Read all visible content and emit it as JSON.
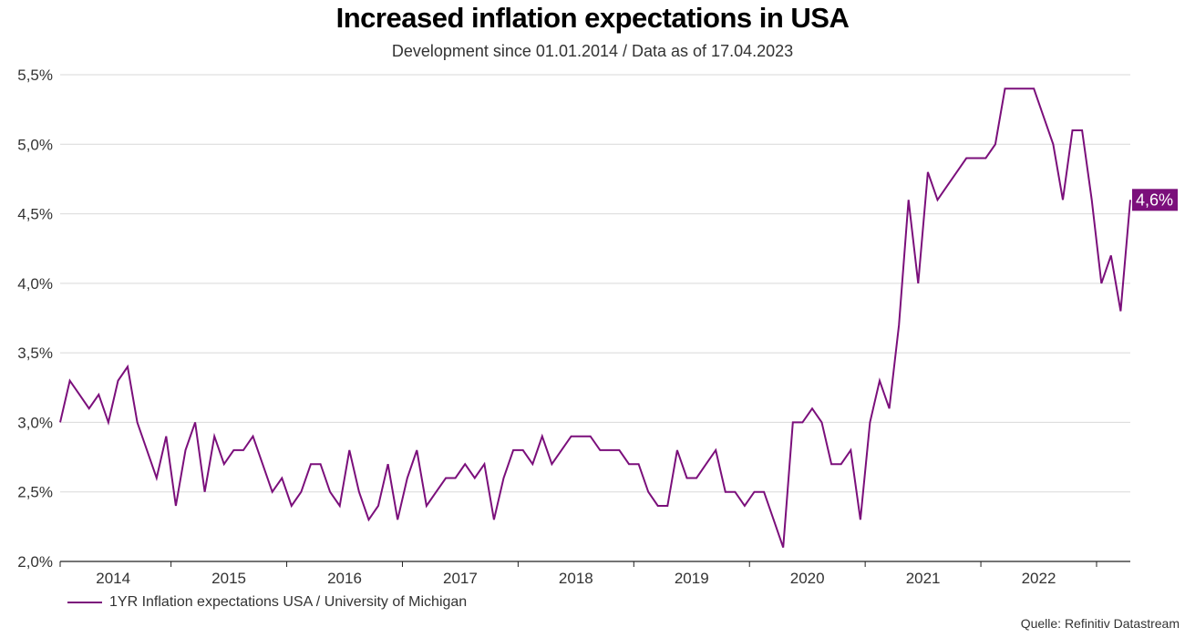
{
  "chart_data": {
    "type": "line",
    "title": "Increased inflation expectations in USA",
    "subtitle": "Development since 01.01.2014 / Data as of 17.04.2023",
    "xlabel": "",
    "ylabel": "",
    "ylim": [
      2.0,
      5.5
    ],
    "yticks": [
      2.0,
      2.5,
      3.0,
      3.5,
      4.0,
      4.5,
      5.0,
      5.5
    ],
    "ytick_labels": [
      "2,0%",
      "2,5%",
      "3,0%",
      "3,5%",
      "4,0%",
      "4,5%",
      "5,0%",
      "5,5%"
    ],
    "xtick_labels": [
      "2014",
      "2015",
      "2016",
      "2017",
      "2018",
      "2019",
      "2020",
      "2021",
      "2022"
    ],
    "x_start": "2014-01",
    "x_end": "2023-04",
    "grid": true,
    "legend_position": "bottom-left",
    "series": [
      {
        "name": "1YR Inflation expectations USA / University of Michigan",
        "color": "#7b0f7b",
        "frequency": "monthly",
        "values": [
          3.0,
          3.3,
          3.2,
          3.1,
          3.2,
          3.0,
          3.3,
          3.4,
          3.0,
          2.8,
          2.6,
          2.9,
          2.4,
          2.8,
          3.0,
          2.5,
          2.9,
          2.7,
          2.8,
          2.8,
          2.9,
          2.7,
          2.5,
          2.6,
          2.4,
          2.5,
          2.7,
          2.7,
          2.5,
          2.4,
          2.8,
          2.5,
          2.3,
          2.4,
          2.7,
          2.3,
          2.6,
          2.8,
          2.4,
          2.5,
          2.6,
          2.6,
          2.7,
          2.6,
          2.7,
          2.3,
          2.6,
          2.8,
          2.8,
          2.7,
          2.9,
          2.7,
          2.8,
          2.9,
          2.9,
          2.9,
          2.8,
          2.8,
          2.8,
          2.7,
          2.7,
          2.5,
          2.4,
          2.4,
          2.8,
          2.6,
          2.6,
          2.7,
          2.8,
          2.5,
          2.5,
          2.4,
          2.5,
          2.5,
          2.3,
          2.1,
          3.0,
          3.0,
          3.1,
          3.0,
          2.7,
          2.7,
          2.8,
          2.3,
          3.0,
          3.3,
          3.1,
          3.7,
          4.6,
          4.0,
          4.8,
          4.6,
          4.7,
          4.8,
          4.9,
          4.9,
          4.9,
          5.0,
          5.4,
          5.4,
          5.4,
          5.4,
          5.2,
          5.0,
          4.6,
          5.1,
          5.1,
          4.6,
          4.0,
          4.2,
          3.8,
          4.6
        ]
      }
    ],
    "annotations": [
      {
        "text": "4,6%",
        "type": "last-value-label",
        "value": 4.6,
        "background": "#7b0f7b",
        "color": "#ffffff"
      }
    ]
  },
  "legend": {
    "label": "1YR Inflation expectations USA / University of Michigan",
    "color": "#7b0f7b"
  },
  "source": "Quelle: Refinitiv Datastream"
}
